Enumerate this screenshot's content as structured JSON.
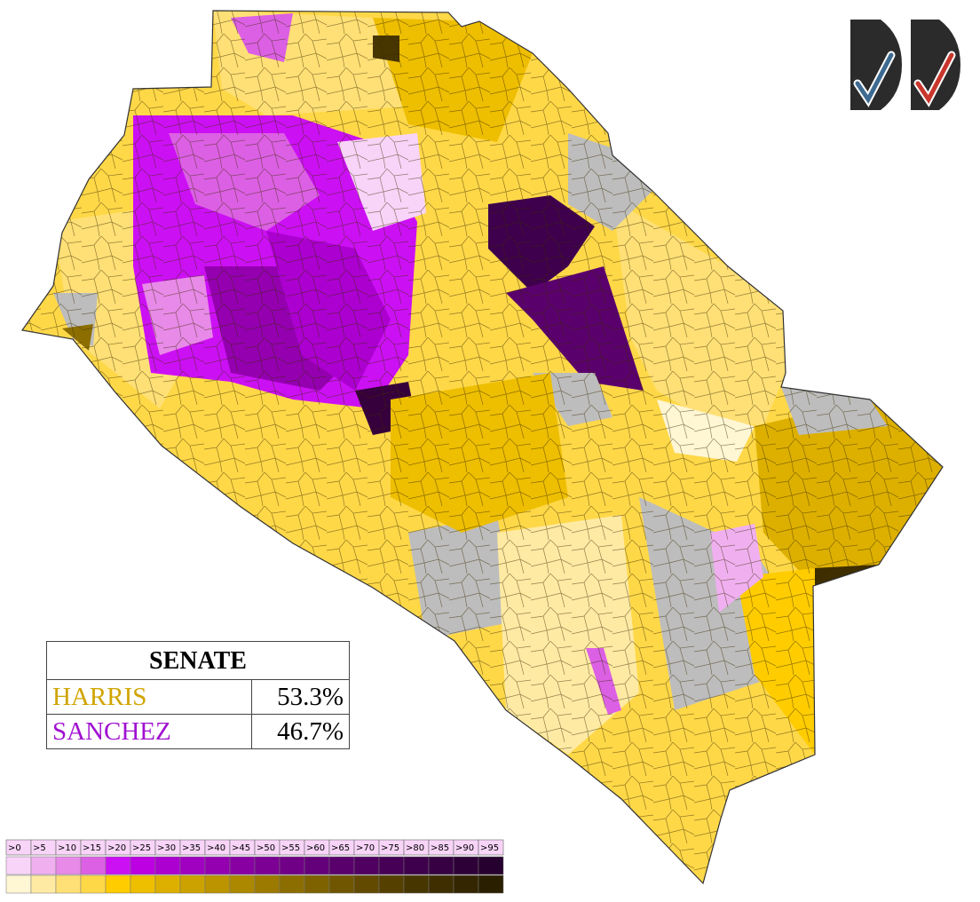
{
  "table": {
    "title": "SENATE",
    "rows": [
      {
        "name": "HARRIS",
        "value": "53.3%",
        "color": "#d0a400"
      },
      {
        "name": "SANCHEZ",
        "value": "46.7%",
        "color": "#a010d0"
      }
    ]
  },
  "legend": {
    "labels": [
      ">0",
      ">5",
      ">10",
      ">15",
      ">20",
      ">25",
      ">30",
      ">35",
      ">40",
      ">45",
      ">50",
      ">55",
      ">60",
      ">65",
      ">70",
      ">75",
      ">80",
      ">85",
      ">90",
      ">95"
    ],
    "scales": [
      [
        "#f8d4f8",
        "#f0b0f0",
        "#e88ae8",
        "#dc60e4",
        "#cc10f4",
        "#bc00e2",
        "#ac00d0",
        "#a000c0",
        "#9400b0",
        "#8800a2",
        "#7c0094",
        "#700086",
        "#64007a",
        "#5a006c",
        "#500060",
        "#460056",
        "#3e004c",
        "#360042",
        "#2e0038",
        "#26002e"
      ],
      [
        "#fff6d4",
        "#ffeaa4",
        "#ffe076",
        "#ffd848",
        "#ffcc00",
        "#eebe00",
        "#ddb000",
        "#cca200",
        "#bc9400",
        "#ac8800",
        "#9c7a00",
        "#8c6e00",
        "#7e6200",
        "#705600",
        "#624a00",
        "#554000",
        "#483600",
        "#3e2e00",
        "#342600",
        "#2a2000"
      ]
    ]
  }
}
